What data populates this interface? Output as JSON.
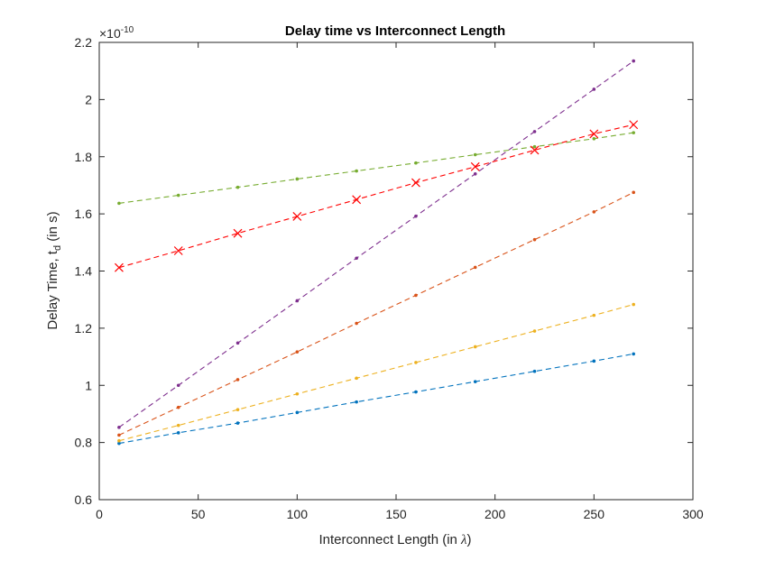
{
  "chart_data": {
    "type": "line",
    "title": "Delay time vs Interconnect Length",
    "xlabel": {
      "prefix": "Interconnect Length (in ",
      "symbol": "λ",
      "suffix": ")"
    },
    "ylabel": {
      "main": "Delay Time, t",
      "sub": "d",
      "suffix": " (in s)"
    },
    "y_exponent": {
      "base": "×10",
      "power": "-10"
    },
    "xlim": [
      0,
      300
    ],
    "ylim": [
      0.6,
      2.2
    ],
    "xticks": [
      0,
      50,
      100,
      150,
      200,
      250,
      300
    ],
    "yticks": [
      0.6,
      0.8,
      1,
      1.2,
      1.4,
      1.6,
      1.8,
      2,
      2.2
    ],
    "ytick_labels": [
      "0.6",
      "0.8",
      "1",
      "1.2",
      "1.4",
      "1.6",
      "1.8",
      "2",
      "2.2"
    ],
    "xtick_labels": [
      "0",
      "50",
      "100",
      "150",
      "200",
      "250",
      "300"
    ],
    "grid": false,
    "legend": "none",
    "x": [
      10,
      40,
      70,
      100,
      130,
      160,
      190,
      220,
      250,
      270
    ],
    "series": [
      {
        "color": "#0072BD",
        "marker": "dot",
        "values": [
          0.797,
          0.834,
          0.868,
          0.905,
          0.942,
          0.977,
          1.013,
          1.049,
          1.085,
          1.11
        ]
      },
      {
        "color": "#D95319",
        "marker": "dot",
        "values": [
          0.826,
          0.923,
          1.02,
          1.117,
          1.217,
          1.315,
          1.413,
          1.51,
          1.607,
          1.675
        ]
      },
      {
        "color": "#EDB120",
        "marker": "dot",
        "values": [
          0.806,
          0.86,
          0.915,
          0.97,
          1.025,
          1.08,
          1.135,
          1.19,
          1.245,
          1.283
        ]
      },
      {
        "color": "#7E2F8E",
        "marker": "dot",
        "values": [
          0.853,
          1.0,
          1.148,
          1.296,
          1.445,
          1.592,
          1.74,
          1.888,
          2.036,
          2.135
        ]
      },
      {
        "color": "#77AC30",
        "marker": "dot",
        "values": [
          1.637,
          1.665,
          1.693,
          1.722,
          1.75,
          1.778,
          1.807,
          1.835,
          1.863,
          1.884
        ]
      },
      {
        "color": "#FF0000",
        "marker": "x",
        "values": [
          1.412,
          1.471,
          1.532,
          1.591,
          1.65,
          1.709,
          1.765,
          1.823,
          1.88,
          1.912
        ]
      }
    ]
  }
}
